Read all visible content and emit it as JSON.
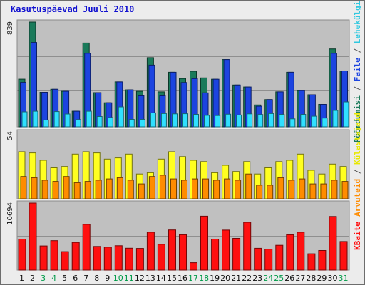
{
  "page_title": "Kasutuspäevad Juuli 2010",
  "chart_data": [
    {
      "type": "bar",
      "panel": "top",
      "categories": [
        "1",
        "2",
        "3",
        "4",
        "5",
        "6",
        "7",
        "8",
        "9",
        "10",
        "11",
        "12",
        "13",
        "14",
        "15",
        "16",
        "17",
        "18",
        "19",
        "20",
        "21",
        "22",
        "23",
        "24",
        "25",
        "26",
        "27",
        "28",
        "29",
        "30",
        "31"
      ],
      "y_max_label": "839",
      "ylim": [
        0,
        839
      ],
      "grid": true,
      "series": [
        {
          "name": "Pöördumisi",
          "color": "#1a7a5a",
          "values": [
            382,
            839,
            277,
            301,
            285,
            125,
            671,
            274,
            193,
            360,
            296,
            285,
            554,
            280,
            437,
            387,
            445,
            392,
            381,
            539,
            335,
            319,
            175,
            218,
            280,
            437,
            290,
            257,
            180,
            624,
            448
          ]
        },
        {
          "name": "Failе",
          "color": "#1c44e0",
          "values": [
            356,
            676,
            277,
            301,
            285,
            125,
            589,
            274,
            193,
            360,
            296,
            248,
            494,
            248,
            437,
            355,
            386,
            272,
            381,
            539,
            335,
            319,
            165,
            218,
            280,
            437,
            290,
            257,
            180,
            589,
            448
          ]
        },
        {
          "name": "Lehekülgi",
          "color": "#30e0ff",
          "values": [
            120,
            125,
            55,
            122,
            103,
            58,
            125,
            83,
            75,
            160,
            60,
            60,
            112,
            106,
            104,
            105,
            100,
            92,
            90,
            101,
            95,
            104,
            99,
            106,
            100,
            64,
            100,
            85,
            70,
            131,
            200
          ]
        }
      ]
    },
    {
      "type": "bar",
      "panel": "middle",
      "categories": [
        "1",
        "2",
        "3",
        "4",
        "5",
        "6",
        "7",
        "8",
        "9",
        "10",
        "11",
        "12",
        "13",
        "14",
        "15",
        "16",
        "17",
        "18",
        "19",
        "20",
        "21",
        "22",
        "23",
        "24",
        "25",
        "26",
        "27",
        "28",
        "29",
        "30",
        "31"
      ],
      "y_max_label": "54",
      "ylim": [
        0,
        54
      ],
      "grid": true,
      "series": [
        {
          "name": "Külastajaid",
          "color": "#ffff20",
          "values": [
            38,
            37,
            31,
            25,
            26,
            36,
            38,
            37,
            32,
            33,
            36,
            20,
            21,
            32,
            38,
            34,
            31,
            30,
            21,
            27,
            22,
            30,
            20,
            25,
            30,
            31,
            36,
            23,
            20,
            28,
            26
          ]
        },
        {
          "name": "Arvuteid",
          "color": "#ff8c00",
          "values": [
            18,
            17,
            15,
            14,
            18,
            13,
            14,
            15,
            16,
            17,
            15,
            12,
            18,
            19,
            16,
            15,
            16,
            16,
            15,
            16,
            15,
            20,
            11,
            11,
            17,
            15,
            16,
            12,
            12,
            15,
            14
          ]
        }
      ]
    },
    {
      "type": "bar",
      "panel": "bottom",
      "categories": [
        "1",
        "2",
        "3",
        "4",
        "5",
        "6",
        "7",
        "8",
        "9",
        "10",
        "11",
        "12",
        "13",
        "14",
        "15",
        "16",
        "17",
        "18",
        "19",
        "20",
        "21",
        "22",
        "23",
        "24",
        "25",
        "26",
        "27",
        "28",
        "29",
        "30",
        "31"
      ],
      "y_max_label": "10694",
      "ylim": [
        0,
        10694
      ],
      "grid": true,
      "series": [
        {
          "name": "KBaite",
          "color": "#ff1010",
          "values": [
            4950,
            10694,
            3860,
            4700,
            2950,
            4410,
            7290,
            3780,
            3660,
            3890,
            3490,
            3460,
            6040,
            4120,
            6400,
            5640,
            1180,
            8600,
            4950,
            6380,
            5060,
            7620,
            3480,
            3350,
            3960,
            5640,
            6040,
            2600,
            3130,
            8550,
            4560
          ]
        }
      ]
    }
  ],
  "x_labels": {
    "values": [
      "1",
      "2",
      "3",
      "4",
      "5",
      "6",
      "7",
      "8",
      "9",
      "10",
      "11",
      "12",
      "13",
      "14",
      "15",
      "16",
      "17",
      "18",
      "19",
      "20",
      "21",
      "22",
      "23",
      "24",
      "25",
      "26",
      "27",
      "28",
      "29",
      "30",
      "31"
    ],
    "weekend_color": "#009a48",
    "weekday_color": "#101010",
    "weekend_days": [
      3,
      4,
      10,
      11,
      17,
      18,
      24,
      25,
      31
    ]
  },
  "right_labels": {
    "top": [
      {
        "text": "Pöördumisi",
        "color": "#1a7a5a"
      },
      {
        "text": " / ",
        "color": "#555555"
      },
      {
        "text": "Faile",
        "color": "#1c44e0"
      },
      {
        "text": " / ",
        "color": "#555555"
      },
      {
        "text": "Lehekülgi",
        "color": "#30c8e0"
      }
    ],
    "middle": [
      {
        "text": "Arvuteid",
        "color": "#ff8c00"
      },
      {
        "text": " / ",
        "color": "#555555"
      },
      {
        "text": "Külastajaid",
        "color": "#e8e800"
      }
    ],
    "bottom": [
      {
        "text": "KBaite",
        "color": "#ff1010"
      }
    ]
  }
}
